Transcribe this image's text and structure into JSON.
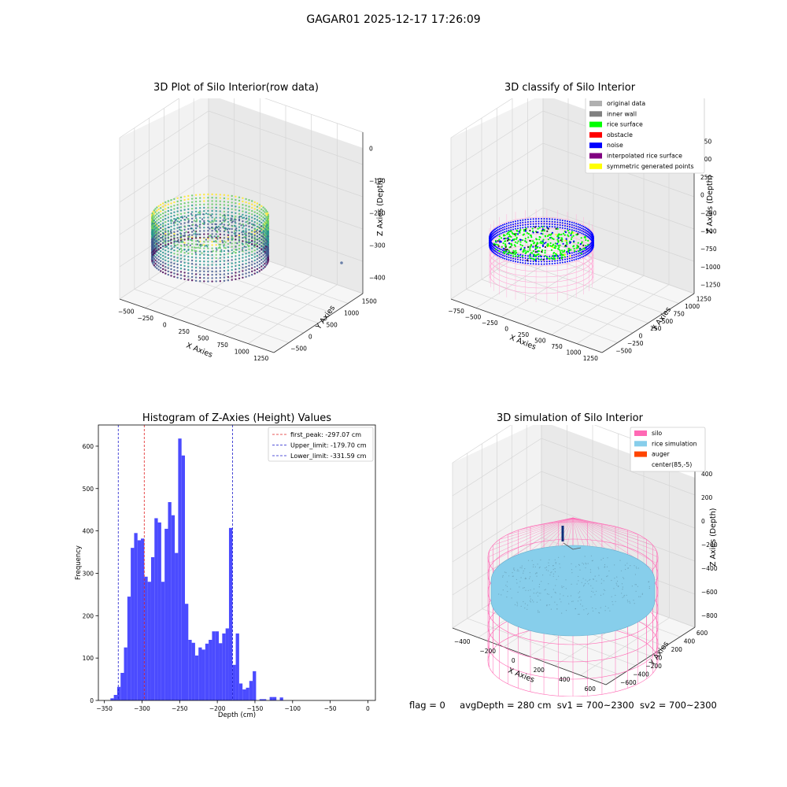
{
  "figure": {
    "suptitle": "GAGAR01 2025-12-17 17:26:09",
    "status_line": {
      "flag": "flag = 0",
      "avg_depth": "avgDepth = 280 cm",
      "sv1": "sv1 = 700~2300",
      "sv2": "sv2 = 700~2300"
    }
  },
  "colors": {
    "hist_bar": "#4b4bff",
    "first_peak_line": "#e02020",
    "limit_line": "#1c1ccc",
    "silo_wire": "#ff69b4",
    "rice_fill": "#87ceeb",
    "auger": "#ff4500",
    "rice_surface": "#00ff00",
    "noise": "#0000ff",
    "obstacle": "#ff0000",
    "original": "#b0b0b0",
    "inner_wall": "#808080",
    "interpolated": "#800080",
    "symmetric": "#ffff00"
  },
  "chart_data": [
    {
      "type": "scatter",
      "title": "3D Plot of Silo Interior(row data)",
      "xlabel": "X Axies",
      "ylabel": "Y Axies",
      "zlabel": "Z Axies (Depth)",
      "x_ticks": [
        "−500",
        "−250",
        "0",
        "250",
        "500",
        "750",
        "1000",
        "1250"
      ],
      "y_ticks": [
        "−500",
        "0",
        "500",
        "1000",
        "1500"
      ],
      "z_ticks": [
        "0",
        "−100",
        "−200",
        "−300",
        "−400"
      ],
      "colormap": "viridis"
    },
    {
      "type": "scatter",
      "title": "3D classify of Silo Interior",
      "xlabel": "X Axies",
      "ylabel": "Y Axies",
      "zlabel": "Z Axies (Depth)",
      "x_ticks": [
        "−750",
        "−500",
        "−250",
        "0",
        "250",
        "500",
        "750",
        "1000",
        "1250"
      ],
      "y_ticks": [
        "−500",
        "−250",
        "0",
        "250",
        "500",
        "750",
        "1000",
        "1250"
      ],
      "z_ticks": [
        "750",
        "500",
        "250",
        "0",
        "−250",
        "−500",
        "−750",
        "−1000",
        "−1250"
      ],
      "legend": {
        "placement": "top-right",
        "entries": [
          {
            "label": "original data",
            "color": "#b0b0b0"
          },
          {
            "label": "inner wall",
            "color": "#808080"
          },
          {
            "label": "rice surface",
            "color": "#00ff00"
          },
          {
            "label": "obstacle",
            "color": "#ff0000"
          },
          {
            "label": "noise",
            "color": "#0000ff"
          },
          {
            "label": "interpolated rice surface",
            "color": "#800080"
          },
          {
            "label": "symmetric generated points",
            "color": "#ffff00"
          }
        ]
      }
    },
    {
      "type": "bar",
      "title": "Histogram of Z-Axies (Height) Values",
      "xlabel": "Depth (cm)",
      "ylabel": "Frequency",
      "xlim": [
        -358,
        10
      ],
      "ylim": [
        0,
        650
      ],
      "grid": false,
      "x_ticks": [
        -350,
        -300,
        -250,
        -200,
        -150,
        -100,
        -50,
        0
      ],
      "y_ticks": [
        0,
        100,
        200,
        300,
        400,
        500,
        600
      ],
      "bin_start": -342,
      "bin_width": 4.5,
      "values": [
        5,
        13,
        32,
        65,
        125,
        245,
        360,
        395,
        378,
        382,
        292,
        280,
        338,
        430,
        420,
        280,
        405,
        468,
        437,
        348,
        618,
        578,
        228,
        143,
        136,
        106,
        125,
        120,
        134,
        143,
        163,
        163,
        135,
        158,
        170,
        407,
        84,
        158,
        40,
        26,
        30,
        46,
        69,
        0,
        3,
        3,
        0,
        8,
        8,
        0,
        7
      ],
      "vlines": [
        {
          "x": -297.07,
          "style": "dashed",
          "color": "#e02020"
        },
        {
          "x": -179.7,
          "style": "dashed",
          "color": "#1c1ccc"
        },
        {
          "x": -331.59,
          "style": "dashed",
          "color": "#1c1ccc"
        }
      ],
      "legend": {
        "placement": "top-right",
        "entries": [
          {
            "label": "first_peak: -297.07 cm",
            "color": "#e02020"
          },
          {
            "label": "Upper_limit: -179.70 cm",
            "color": "#1c1ccc"
          },
          {
            "label": "Lower_limit: -331.59 cm",
            "color": "#1c1ccc"
          }
        ]
      }
    },
    {
      "type": "scatter",
      "title": "3D simulation of Silo Interior",
      "xlabel": "X Axies",
      "ylabel": "Y Axies",
      "zlabel": "Z Axies (Depth)",
      "x_ticks": [
        "−400",
        "−200",
        "0",
        "200",
        "400",
        "600"
      ],
      "y_ticks": [
        "−600",
        "−400",
        "−200",
        "0",
        "200",
        "400",
        "600"
      ],
      "z_ticks": [
        "400",
        "200",
        "0",
        "−200",
        "−400",
        "−600",
        "−800"
      ],
      "legend": {
        "placement": "top-right",
        "entries": [
          {
            "label": "silo",
            "color": "#ff69b4"
          },
          {
            "label": "rice simulation",
            "color": "#87ceeb"
          },
          {
            "label": "auger",
            "color": "#ff4500"
          },
          {
            "label": "center(85,-5)",
            "color": "#ffffff"
          }
        ]
      }
    }
  ]
}
